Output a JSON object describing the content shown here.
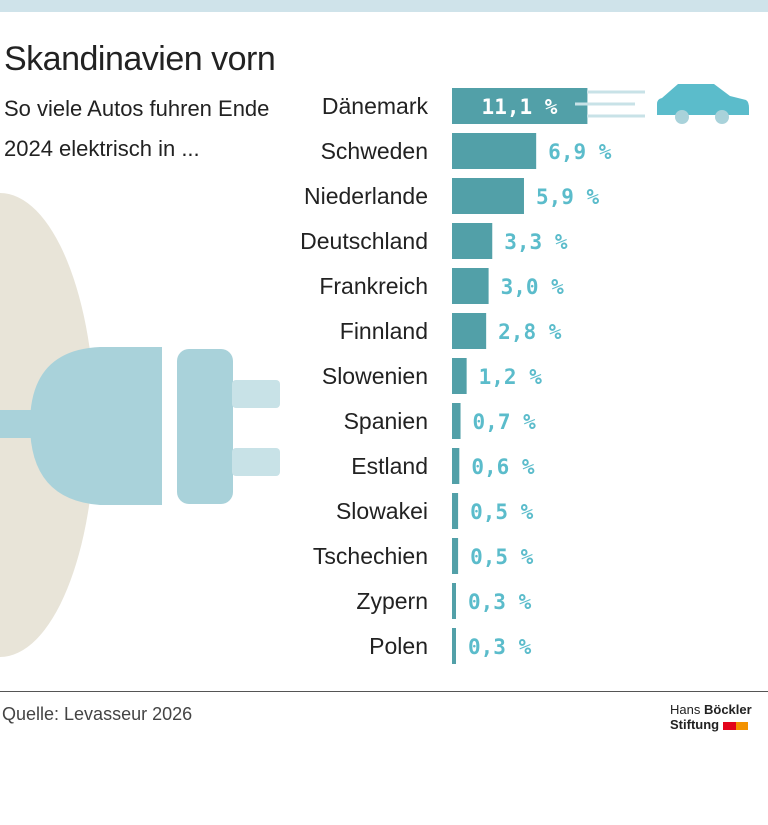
{
  "header": {
    "title": "Skandinavien vorn",
    "subtitle": "So viele Autos fuhren Ende 2024 elektrisch in ..."
  },
  "footer": {
    "source": "Quelle: Levasseur 2026",
    "logo_line1_light": "Hans",
    "logo_line1_bold": "Böckler",
    "logo_line2": "Stiftung"
  },
  "colors": {
    "bar": "#52a0a8",
    "value_label": "#5bbccb",
    "car": "#5bbccb",
    "plug": "#a9d2da",
    "background_shape": "#e8e4d8"
  },
  "icons": [
    "plug-icon",
    "car-icon"
  ],
  "chart_data": {
    "type": "bar",
    "orientation": "horizontal",
    "categories": [
      "Dänemark",
      "Schweden",
      "Niederlande",
      "Deutschland",
      "Frankreich",
      "Finnland",
      "Slowenien",
      "Spanien",
      "Estland",
      "Slowakei",
      "Tschechien",
      "Zypern",
      "Polen"
    ],
    "values": [
      11.1,
      6.9,
      5.9,
      3.3,
      3.0,
      2.8,
      1.2,
      0.7,
      0.6,
      0.5,
      0.5,
      0.3,
      0.3
    ],
    "value_labels": [
      "11,1 %",
      "6,9 %",
      "5,9 %",
      "3,3 %",
      "3,0 %",
      "2,8 %",
      "1,2 %",
      "0,7 %",
      "0,6 %",
      "0,5 %",
      "0,5 %",
      "0,3 %",
      "0,3 %"
    ],
    "unit": "%",
    "grid": false
  }
}
